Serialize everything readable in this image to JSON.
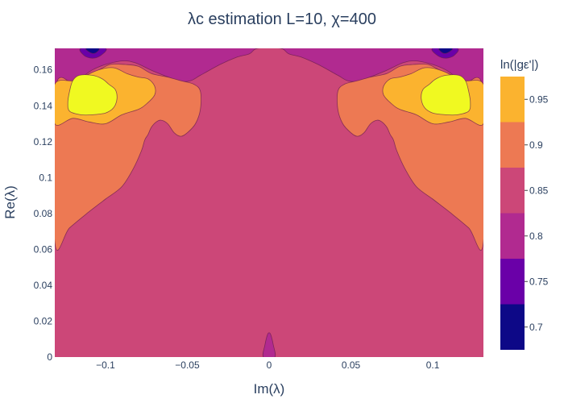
{
  "chart_data": {
    "type": "contour",
    "title": "λc estimation L=10, χ=400",
    "xlabel": "Im(λ)",
    "ylabel": "Re(λ)",
    "xlim": [
      -0.131,
      0.131
    ],
    "ylim": [
      0,
      0.172
    ],
    "x_ticks": [
      {
        "value": -0.1,
        "label": "−0.1"
      },
      {
        "value": -0.05,
        "label": "−0.05"
      },
      {
        "value": 0,
        "label": "0"
      },
      {
        "value": 0.05,
        "label": "0.05"
      },
      {
        "value": 0.1,
        "label": "0.1"
      }
    ],
    "y_ticks": [
      {
        "value": 0,
        "label": "0"
      },
      {
        "value": 0.02,
        "label": "0.02"
      },
      {
        "value": 0.04,
        "label": "0.04"
      },
      {
        "value": 0.06,
        "label": "0.06"
      },
      {
        "value": 0.08,
        "label": "0.08"
      },
      {
        "value": 0.1,
        "label": "0.1"
      },
      {
        "value": 0.12,
        "label": "0.12"
      },
      {
        "value": 0.14,
        "label": "0.14"
      },
      {
        "value": 0.16,
        "label": "0.16"
      }
    ],
    "colorbar": {
      "title": "ln(|gε'|)",
      "range": [
        0.675,
        0.975
      ],
      "tick_values": [
        0.7,
        0.75,
        0.8,
        0.85,
        0.9,
        0.95
      ],
      "tick_labels": [
        "0.7",
        "0.75",
        "0.8",
        "0.85",
        "0.9",
        "0.95"
      ],
      "bands": [
        {
          "from": 0.675,
          "to": 0.725,
          "color": "#0d0887"
        },
        {
          "from": 0.725,
          "to": 0.775,
          "color": "#6a00a8"
        },
        {
          "from": 0.775,
          "to": 0.825,
          "color": "#b12a90"
        },
        {
          "from": 0.825,
          "to": 0.875,
          "color": "#cc4778"
        },
        {
          "from": 0.875,
          "to": 0.925,
          "color": "#ed7953"
        },
        {
          "from": 0.925,
          "to": 0.975,
          "color": "#fbb32f"
        },
        {
          "from": 0.975,
          "to": 1.025,
          "color": "#f0f921"
        }
      ]
    },
    "regions": [
      {
        "level": 0.85,
        "color": "#cc4778",
        "label": "base",
        "points": [
          [
            -0.131,
            0
          ],
          [
            0.131,
            0
          ],
          [
            0.131,
            0.172
          ],
          [
            -0.131,
            0.172
          ]
        ]
      },
      {
        "level": 0.8,
        "color": "#b12a90",
        "label": "central-spike",
        "points": [
          [
            -0.0035,
            0
          ],
          [
            -0.0025,
            0.007
          ],
          [
            -0.001,
            0.0125
          ],
          [
            0,
            0.0135
          ],
          [
            0.001,
            0.0125
          ],
          [
            0.0025,
            0.007
          ],
          [
            0.0035,
            0
          ]
        ]
      },
      {
        "level": 0.8,
        "color": "#b12a90",
        "label": "top-purple",
        "points": [
          [
            -0.131,
            0.172
          ],
          [
            -0.131,
            0.15
          ],
          [
            -0.118,
            0.154
          ],
          [
            -0.108,
            0.16
          ],
          [
            -0.1,
            0.163
          ],
          [
            -0.09,
            0.165
          ],
          [
            -0.082,
            0.164
          ],
          [
            -0.07,
            0.159
          ],
          [
            -0.055,
            0.154
          ],
          [
            -0.048,
            0.154
          ],
          [
            -0.042,
            0.157
          ],
          [
            -0.03,
            0.163
          ],
          [
            -0.02,
            0.167
          ],
          [
            -0.012,
            0.169
          ],
          [
            -0.007,
            0.172
          ],
          [
            0.007,
            0.172
          ],
          [
            0.012,
            0.169
          ],
          [
            0.02,
            0.167
          ],
          [
            0.03,
            0.163
          ],
          [
            0.042,
            0.157
          ],
          [
            0.048,
            0.154
          ],
          [
            0.055,
            0.154
          ],
          [
            0.07,
            0.159
          ],
          [
            0.082,
            0.164
          ],
          [
            0.09,
            0.165
          ],
          [
            0.1,
            0.163
          ],
          [
            0.108,
            0.16
          ],
          [
            0.118,
            0.154
          ],
          [
            0.131,
            0.15
          ],
          [
            0.131,
            0.172
          ]
        ]
      },
      {
        "level": 0.75,
        "color": "#6a00a8",
        "label": "top-dark-left",
        "points": [
          [
            -0.115,
            0.172
          ],
          [
            -0.113,
            0.168
          ],
          [
            -0.108,
            0.1665
          ],
          [
            -0.103,
            0.168
          ],
          [
            -0.1,
            0.172
          ]
        ]
      },
      {
        "level": 0.75,
        "color": "#6a00a8",
        "label": "top-dark-right",
        "points": [
          [
            0.1,
            0.172
          ],
          [
            0.103,
            0.168
          ],
          [
            0.108,
            0.1665
          ],
          [
            0.113,
            0.168
          ],
          [
            0.115,
            0.172
          ]
        ]
      },
      {
        "level": 0.7,
        "color": "#0d0887",
        "label": "top-darkest-left",
        "points": [
          [
            -0.112,
            0.172
          ],
          [
            -0.109,
            0.1695
          ],
          [
            -0.106,
            0.1695
          ],
          [
            -0.104,
            0.172
          ]
        ]
      },
      {
        "level": 0.7,
        "color": "#0d0887",
        "label": "top-darkest-right",
        "points": [
          [
            0.104,
            0.172
          ],
          [
            0.106,
            0.1695
          ],
          [
            0.109,
            0.1695
          ],
          [
            0.112,
            0.172
          ]
        ]
      },
      {
        "level": 0.9,
        "color": "#ed7953",
        "label": "orange-left",
        "points": [
          [
            -0.131,
            0.064
          ],
          [
            -0.122,
            0.072
          ],
          [
            -0.11,
            0.081
          ],
          [
            -0.1,
            0.088
          ],
          [
            -0.09,
            0.095
          ],
          [
            -0.083,
            0.105
          ],
          [
            -0.078,
            0.115
          ],
          [
            -0.076,
            0.121
          ],
          [
            -0.074,
            0.124
          ],
          [
            -0.072,
            0.128
          ],
          [
            -0.069,
            0.131
          ],
          [
            -0.066,
            0.132
          ],
          [
            -0.062,
            0.13
          ],
          [
            -0.058,
            0.125
          ],
          [
            -0.054,
            0.123
          ],
          [
            -0.05,
            0.125
          ],
          [
            -0.045,
            0.13
          ],
          [
            -0.042,
            0.138
          ],
          [
            -0.042,
            0.148
          ],
          [
            -0.046,
            0.152
          ],
          [
            -0.054,
            0.154
          ],
          [
            -0.062,
            0.156
          ],
          [
            -0.072,
            0.158
          ],
          [
            -0.08,
            0.162
          ],
          [
            -0.088,
            0.163
          ],
          [
            -0.097,
            0.163
          ],
          [
            -0.104,
            0.16
          ],
          [
            -0.113,
            0.156
          ],
          [
            -0.12,
            0.153
          ],
          [
            -0.131,
            0.148
          ]
        ]
      },
      {
        "level": 0.9,
        "color": "#ed7953",
        "label": "orange-right",
        "points": [
          [
            0.131,
            0.064
          ],
          [
            0.122,
            0.072
          ],
          [
            0.11,
            0.081
          ],
          [
            0.1,
            0.088
          ],
          [
            0.09,
            0.095
          ],
          [
            0.083,
            0.105
          ],
          [
            0.078,
            0.115
          ],
          [
            0.076,
            0.121
          ],
          [
            0.074,
            0.124
          ],
          [
            0.072,
            0.128
          ],
          [
            0.069,
            0.131
          ],
          [
            0.066,
            0.132
          ],
          [
            0.062,
            0.13
          ],
          [
            0.058,
            0.125
          ],
          [
            0.054,
            0.123
          ],
          [
            0.05,
            0.125
          ],
          [
            0.045,
            0.13
          ],
          [
            0.042,
            0.138
          ],
          [
            0.042,
            0.148
          ],
          [
            0.046,
            0.152
          ],
          [
            0.054,
            0.154
          ],
          [
            0.062,
            0.156
          ],
          [
            0.072,
            0.158
          ],
          [
            0.08,
            0.162
          ],
          [
            0.088,
            0.163
          ],
          [
            0.097,
            0.163
          ],
          [
            0.104,
            0.16
          ],
          [
            0.113,
            0.156
          ],
          [
            0.12,
            0.153
          ],
          [
            0.131,
            0.148
          ]
        ]
      },
      {
        "level": 0.95,
        "color": "#fbb32f",
        "label": "yellow-orange-left",
        "points": [
          [
            -0.131,
            0.13
          ],
          [
            -0.12,
            0.133
          ],
          [
            -0.11,
            0.131
          ],
          [
            -0.1,
            0.13
          ],
          [
            -0.09,
            0.135
          ],
          [
            -0.08,
            0.138
          ],
          [
            -0.075,
            0.141
          ],
          [
            -0.07,
            0.146
          ],
          [
            -0.07,
            0.151
          ],
          [
            -0.074,
            0.155
          ],
          [
            -0.08,
            0.156
          ],
          [
            -0.087,
            0.158
          ],
          [
            -0.094,
            0.161
          ],
          [
            -0.1,
            0.161
          ],
          [
            -0.107,
            0.159
          ],
          [
            -0.114,
            0.156
          ],
          [
            -0.12,
            0.154
          ],
          [
            -0.131,
            0.152
          ]
        ]
      },
      {
        "level": 0.95,
        "color": "#fbb32f",
        "label": "yellow-orange-right",
        "points": [
          [
            0.131,
            0.13
          ],
          [
            0.12,
            0.133
          ],
          [
            0.11,
            0.131
          ],
          [
            0.1,
            0.13
          ],
          [
            0.09,
            0.135
          ],
          [
            0.08,
            0.138
          ],
          [
            0.075,
            0.141
          ],
          [
            0.07,
            0.146
          ],
          [
            0.07,
            0.151
          ],
          [
            0.074,
            0.155
          ],
          [
            0.08,
            0.156
          ],
          [
            0.087,
            0.158
          ],
          [
            0.094,
            0.161
          ],
          [
            0.1,
            0.161
          ],
          [
            0.107,
            0.159
          ],
          [
            0.114,
            0.156
          ],
          [
            0.12,
            0.154
          ],
          [
            0.131,
            0.152
          ]
        ]
      },
      {
        "level": 1.0,
        "color": "#f0f921",
        "label": "yellow-left",
        "points": [
          [
            -0.122,
            0.137
          ],
          [
            -0.115,
            0.135
          ],
          [
            -0.108,
            0.135
          ],
          [
            -0.1,
            0.136
          ],
          [
            -0.095,
            0.139
          ],
          [
            -0.093,
            0.144
          ],
          [
            -0.094,
            0.149
          ],
          [
            -0.098,
            0.152
          ],
          [
            -0.102,
            0.155
          ],
          [
            -0.108,
            0.157
          ],
          [
            -0.116,
            0.157
          ],
          [
            -0.12,
            0.154
          ],
          [
            -0.122,
            0.148
          ],
          [
            -0.123,
            0.142
          ]
        ]
      },
      {
        "level": 1.0,
        "color": "#f0f921",
        "label": "yellow-right",
        "points": [
          [
            0.122,
            0.137
          ],
          [
            0.115,
            0.135
          ],
          [
            0.108,
            0.135
          ],
          [
            0.1,
            0.136
          ],
          [
            0.095,
            0.139
          ],
          [
            0.093,
            0.144
          ],
          [
            0.094,
            0.149
          ],
          [
            0.098,
            0.152
          ],
          [
            0.102,
            0.155
          ],
          [
            0.108,
            0.157
          ],
          [
            0.116,
            0.157
          ],
          [
            0.12,
            0.154
          ],
          [
            0.122,
            0.148
          ],
          [
            0.123,
            0.142
          ]
        ]
      }
    ]
  }
}
